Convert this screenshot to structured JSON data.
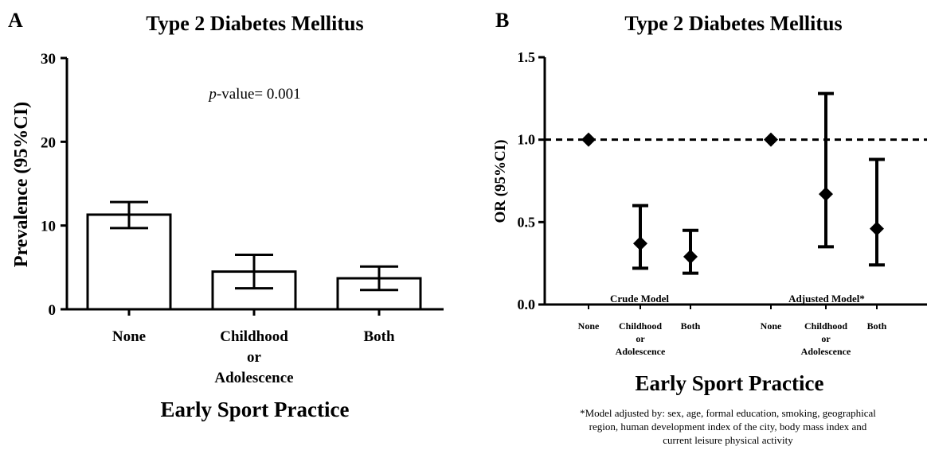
{
  "chart_data": [
    {
      "panel": "A",
      "type": "bar",
      "title": "Type 2 Diabetes Mellitus",
      "xlabel": "Early Sport Practice",
      "ylabel": "Prevalence (95%CI)",
      "categories": [
        [
          "None"
        ],
        [
          "Childhood",
          "or",
          "Adolescence"
        ],
        [
          "Both"
        ]
      ],
      "values": [
        11.3,
        4.5,
        3.7
      ],
      "ci_low": [
        9.7,
        2.5,
        2.3
      ],
      "ci_high": [
        12.8,
        6.5,
        5.1
      ],
      "ylim": [
        0,
        30
      ],
      "yticks": [
        0,
        10,
        20,
        30
      ],
      "annotation_italic": "p",
      "annotation_rest": "-value= 0.001",
      "grid": false
    },
    {
      "panel": "B",
      "type": "scatter",
      "title": "Type 2 Diabetes Mellitus",
      "xlabel": "Early Sport Practice",
      "ylabel": "OR (95%CI)",
      "ylim": [
        0,
        1.5
      ],
      "yticks": [
        "0.0",
        "0.5",
        "1.0",
        "1.5"
      ],
      "reference_line": 1.0,
      "groups": [
        {
          "name": "Crude Model",
          "points": [
            {
              "category": [
                "None"
              ],
              "or": 1.0
            },
            {
              "category": [
                "Childhood",
                "or",
                "Adolescence"
              ],
              "or": 0.37,
              "ci_low": 0.22,
              "ci_high": 0.6
            },
            {
              "category": [
                "Both"
              ],
              "or": 0.29,
              "ci_low": 0.19,
              "ci_high": 0.45
            }
          ]
        },
        {
          "name": "Adjusted Model*",
          "points": [
            {
              "category": [
                "None"
              ],
              "or": 1.0
            },
            {
              "category": [
                "Childhood",
                "or",
                "Adolescence"
              ],
              "or": 0.67,
              "ci_low": 0.35,
              "ci_high": 1.28
            },
            {
              "category": [
                "Both"
              ],
              "or": 0.46,
              "ci_low": 0.24,
              "ci_high": 0.88
            }
          ]
        }
      ],
      "footnote": [
        "*Model adjusted by: sex, age, formal education, smoking, geographical",
        "region, human development index of the city, body mass index and",
        "current leisure physical activity"
      ],
      "grid": false
    }
  ]
}
